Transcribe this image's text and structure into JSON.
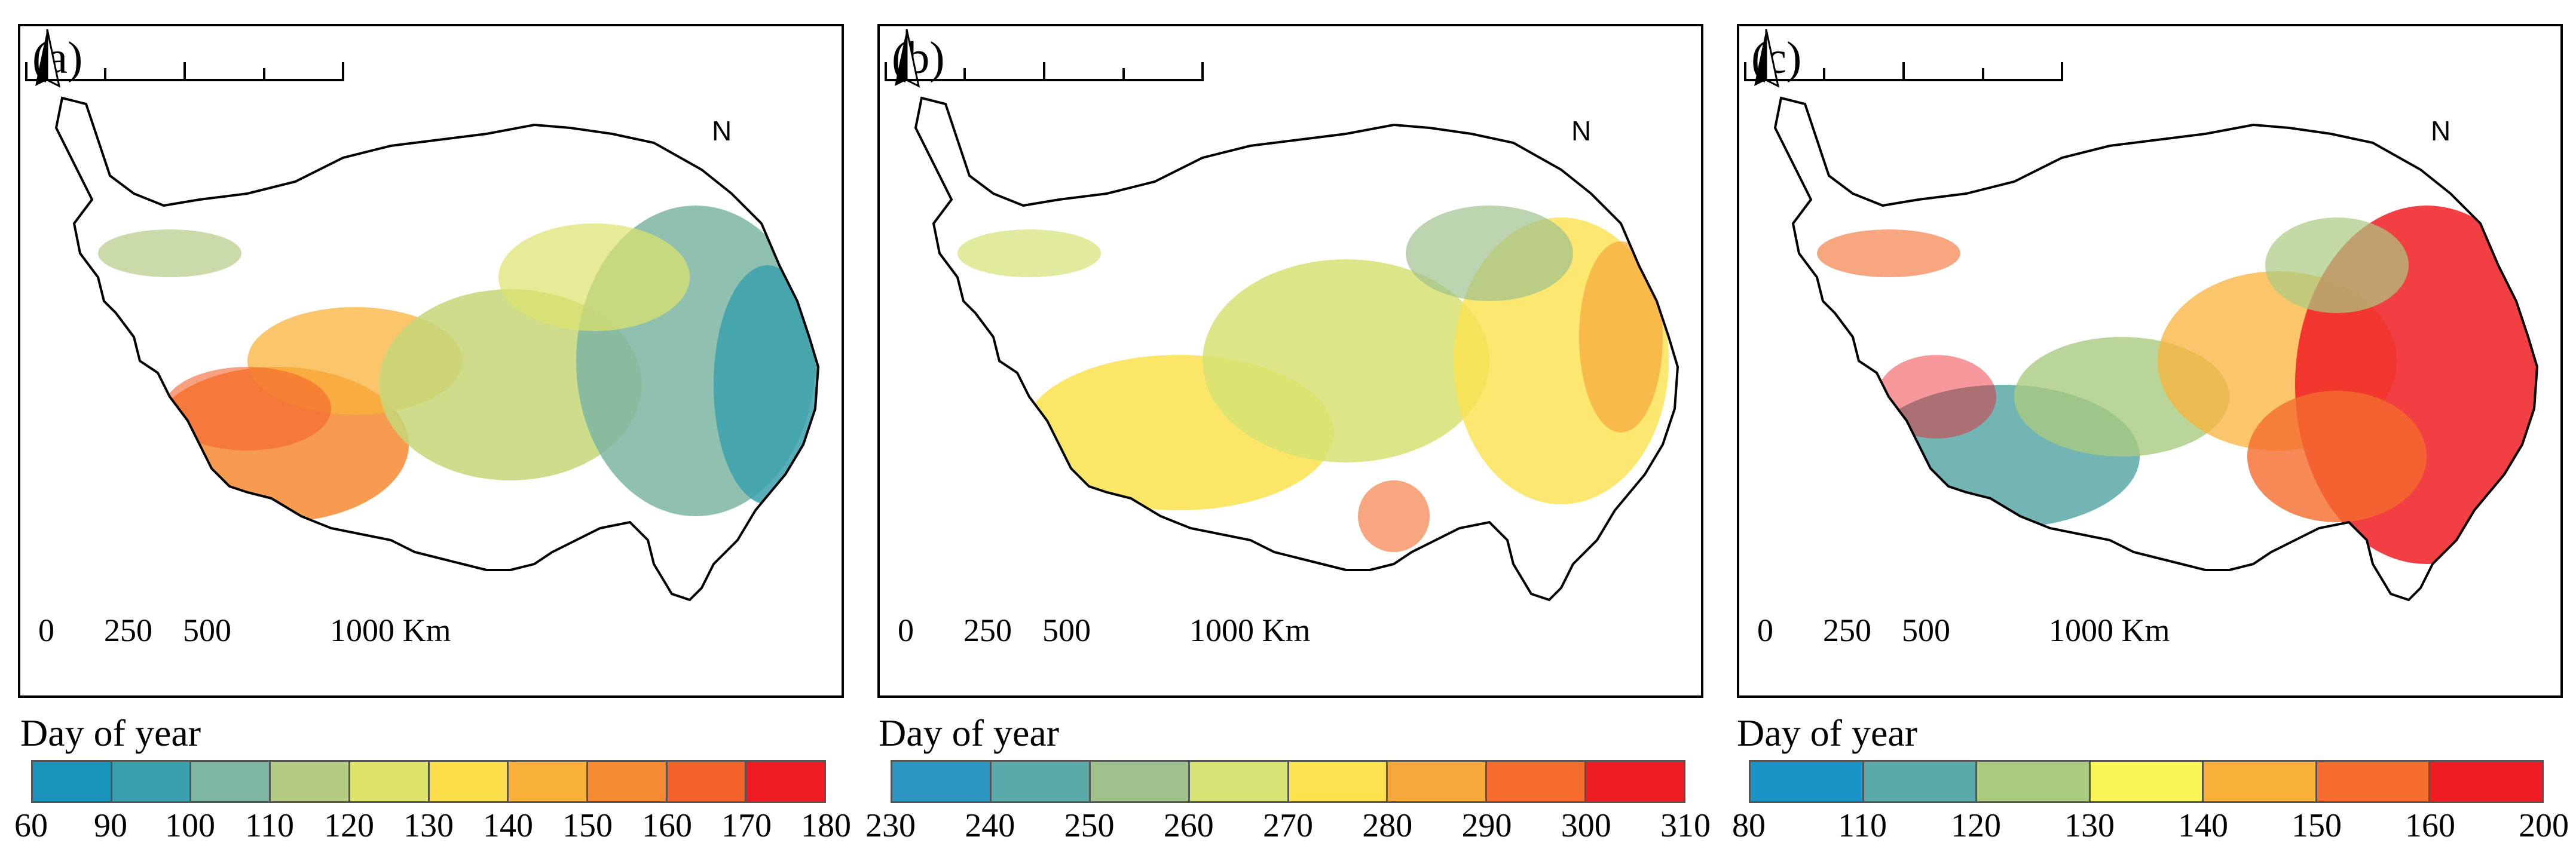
{
  "panels": [
    {
      "letter": "(a)",
      "north_label": "N",
      "scale": {
        "labels": [
          "0",
          "250",
          "500",
          "1000 Km"
        ]
      },
      "legend_title": "Day of year",
      "legend_ticks": [
        "60",
        "90",
        "100",
        "110",
        "120",
        "130",
        "140",
        "150",
        "160",
        "170",
        "180"
      ],
      "legend_colors": [
        "#1a93bd",
        "#3aa0ad",
        "#7db6a2",
        "#b4cb84",
        "#dde36b",
        "#fbdd4a",
        "#f9b13a",
        "#f68a32",
        "#f3622b",
        "#ee1d23"
      ]
    },
    {
      "letter": "(b)",
      "north_label": "N",
      "scale": {
        "labels": [
          "0",
          "250",
          "500",
          "1000 Km"
        ]
      },
      "legend_title": "Day of year",
      "legend_ticks": [
        "230",
        "240",
        "250",
        "260",
        "270",
        "280",
        "290",
        "300",
        "310"
      ],
      "legend_colors": [
        "#2b96bf",
        "#5aa8a8",
        "#9fc28d",
        "#d6e273",
        "#fbe24e",
        "#f7a83a",
        "#f46b2c",
        "#ee1d23"
      ]
    },
    {
      "letter": "(c)",
      "north_label": "N",
      "scale": {
        "labels": [
          "0",
          "250",
          "500",
          "1000 Km"
        ]
      },
      "legend_title": "Day of year",
      "legend_ticks": [
        "80",
        "110",
        "120",
        "130",
        "140",
        "150",
        "160",
        "200"
      ],
      "legend_colors": [
        "#1a93c6",
        "#5ba8a8",
        "#a9cb80",
        "#fbf457",
        "#f9b13a",
        "#f46b2c",
        "#ee1d23"
      ]
    }
  ]
}
